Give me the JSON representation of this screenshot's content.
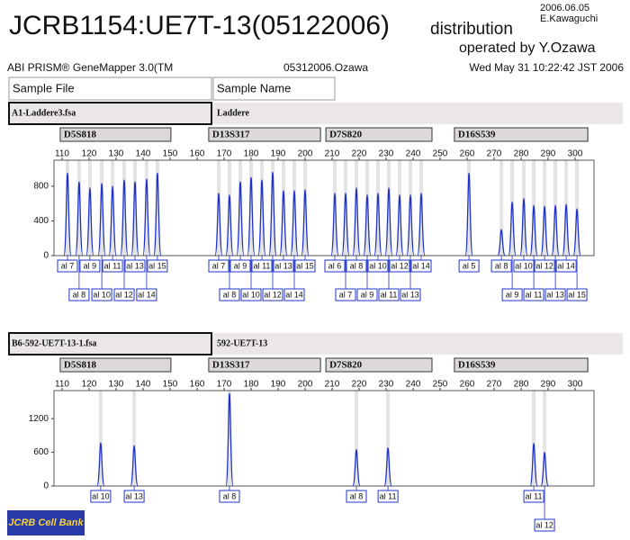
{
  "header": {
    "title": "JCRB1154:UE7T-13(05122006)",
    "title_suffix": "distribution",
    "date": "2006.06.05",
    "author": "E.Kawaguchi",
    "operator": "operated by Y.Ozawa",
    "software": "ABI PRISM® GeneMapper 3.0(TM",
    "file": "05312006.Ozawa",
    "timestamp": "Wed May 31 10:22:42 JST 2006",
    "col_sample_file": "Sample File",
    "col_sample_name": "Sample Name"
  },
  "logo": "JCRB Cell Bank",
  "chart_data": [
    {
      "type": "line",
      "sample_file": "A1-Laddere3.fsa",
      "sample_name": "Laddere",
      "color": "#1f33c8",
      "markers": [
        {
          "name": "D5S818",
          "range": [
            109.3,
            150.3
          ]
        },
        {
          "name": "D13S317",
          "range": [
            164.3,
            205.7
          ]
        },
        {
          "name": "D7S820",
          "range": [
            207.7,
            247
          ]
        },
        {
          "name": "D16S539",
          "range": [
            255.3,
            304.7
          ]
        }
      ],
      "x": [
        112,
        116.3,
        120.3,
        124.7,
        128.7,
        133,
        137,
        141.3,
        145.3,
        168,
        172,
        176,
        180,
        184,
        188,
        192,
        196,
        200,
        211,
        215,
        219,
        223,
        227,
        231,
        235,
        239,
        243,
        260.7,
        272.7,
        276.7,
        281,
        284.7,
        288.7,
        292.7,
        296.7,
        300.7
      ],
      "values": [
        950,
        850,
        780,
        830,
        800,
        870,
        850,
        880,
        950,
        720,
        700,
        850,
        900,
        870,
        960,
        750,
        750,
        760,
        720,
        720,
        780,
        700,
        720,
        780,
        700,
        700,
        720,
        950,
        300,
        620,
        660,
        580,
        570,
        580,
        590,
        540
      ],
      "allele_labels": [
        "al 7",
        "al 8",
        "al 9",
        "al 10",
        "al 11",
        "al 12",
        "al 13",
        "al 14",
        "al 15",
        "al 7",
        "al 8",
        "al 9",
        "al 10",
        "al 11",
        "al 12",
        "al 13",
        "al 14",
        "al 15",
        "al 6",
        "al 7",
        "al 8",
        "al 9",
        "al 10",
        "al 11",
        "al 12",
        "al 13",
        "al 14",
        "al 5",
        "al 8",
        "al 9",
        "al 10",
        "al 11",
        "al 12",
        "al 13",
        "al 14",
        "al 15"
      ],
      "xlim": [
        107,
        307
      ],
      "xticks": [
        110,
        120,
        130,
        140,
        150,
        160,
        170,
        180,
        190,
        200,
        210,
        220,
        230,
        240,
        250,
        260,
        270,
        280,
        290,
        300
      ],
      "ylim": [
        0,
        1100
      ],
      "yticks": [
        0,
        400,
        800
      ]
    },
    {
      "type": "line",
      "sample_file": "B6-592-UE7T-13-1.fsa",
      "sample_name": "592-UE7T-13",
      "color": "#1f33c8",
      "markers": [
        {
          "name": "D5S818",
          "range": [
            109.3,
            150.3
          ]
        },
        {
          "name": "D13S317",
          "range": [
            164.3,
            205.7
          ]
        },
        {
          "name": "D7S820",
          "range": [
            207.7,
            247
          ]
        },
        {
          "name": "D16S539",
          "range": [
            255.3,
            304.7
          ]
        }
      ],
      "x": [
        124.3,
        136.7,
        172,
        219,
        230.7,
        284.7,
        288.7
      ],
      "values": [
        770,
        720,
        1650,
        650,
        680,
        760,
        600
      ],
      "allele_labels": [
        "al 10",
        "al 13",
        "al 8",
        "al 8",
        "al 11",
        "al 11",
        "al 12"
      ],
      "xlim": [
        107,
        307
      ],
      "xticks": [
        110,
        120,
        130,
        140,
        150,
        160,
        170,
        180,
        190,
        200,
        210,
        220,
        230,
        240,
        250,
        260,
        270,
        280,
        290,
        300
      ],
      "ylim": [
        0,
        1700
      ],
      "yticks": [
        0,
        600,
        1200
      ]
    }
  ]
}
